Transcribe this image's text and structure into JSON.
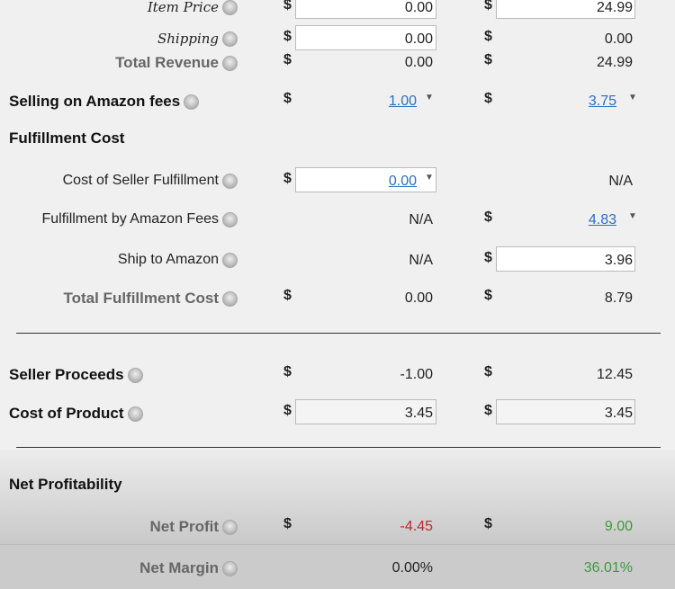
{
  "colors": {
    "link": "#2a6fc4",
    "negative": "#c0262b",
    "positive": "#3a9a3a"
  },
  "rows": [
    {
      "label": "Item Price",
      "style": "italic",
      "help": true,
      "c1": {
        "dollar": "$",
        "value": "0.00",
        "input": true
      },
      "c2": {
        "dollar": "$",
        "value": "24.99",
        "input": true
      }
    },
    {
      "label": "Shipping",
      "style": "italic",
      "help": true,
      "c1": {
        "dollar": "$",
        "value": "0.00",
        "input": true
      },
      "c2": {
        "dollar": "$",
        "value": "0.00"
      }
    },
    {
      "label": "Total Revenue",
      "style": "bold",
      "help": true,
      "c1": {
        "dollar": "$",
        "value": "0.00"
      },
      "c2": {
        "dollar": "$",
        "value": "24.99"
      }
    },
    {
      "label": "Selling on Amazon fees",
      "style": "bold dark left",
      "help": true,
      "c1": {
        "dollar": "$",
        "value": "1.00",
        "link": true,
        "dropdown": true
      },
      "c2": {
        "dollar": "$",
        "value": "3.75",
        "link": true,
        "dropdown": true
      }
    },
    {
      "label": "Fulfillment Cost",
      "style": "bold dark left",
      "help": false
    },
    {
      "label": "Cost of Seller Fulfillment",
      "style": "normal",
      "help": true,
      "c1": {
        "dollar": "$",
        "value": "0.00",
        "input": true,
        "link": true,
        "dropdown": true
      },
      "c2": {
        "value": "N/A"
      }
    },
    {
      "label": "Fulfillment by Amazon Fees",
      "style": "normal",
      "help": true,
      "c1": {
        "value": "N/A"
      },
      "c2": {
        "dollar": "$",
        "value": "4.83",
        "link": true,
        "dropdown": true
      }
    },
    {
      "label": "Ship to Amazon",
      "style": "normal",
      "help": true,
      "c1": {
        "value": "N/A"
      },
      "c2": {
        "dollar": "$",
        "value": "3.96",
        "input": true
      }
    },
    {
      "label": "Total Fulfillment Cost",
      "style": "bold",
      "help": true,
      "c1": {
        "dollar": "$",
        "value": "0.00"
      },
      "c2": {
        "dollar": "$",
        "value": "8.79"
      }
    },
    {
      "label": "Seller Proceeds",
      "style": "bold dark left",
      "help": true,
      "c1": {
        "dollar": "$",
        "value": "-1.00"
      },
      "c2": {
        "dollar": "$",
        "value": "12.45"
      }
    },
    {
      "label": "Cost of Product",
      "style": "bold dark left",
      "help": true,
      "c1": {
        "dollar": "$",
        "value": "3.45",
        "input": true,
        "grey": true
      },
      "c2": {
        "dollar": "$",
        "value": "3.45",
        "input": true,
        "grey": true
      }
    },
    {
      "label": "Net Profitability",
      "style": "bold dark left",
      "help": false
    },
    {
      "label": "Net Profit",
      "style": "bold",
      "help": true,
      "c1": {
        "dollar": "$",
        "value": "-4.45",
        "tone": "neg"
      },
      "c2": {
        "dollar": "$",
        "value": "9.00",
        "tone": "pos"
      }
    },
    {
      "label": "Net Margin",
      "style": "bold",
      "help": true,
      "c1": {
        "value": "0.00%"
      },
      "c2": {
        "value": "36.01%",
        "tone": "pos"
      }
    }
  ]
}
